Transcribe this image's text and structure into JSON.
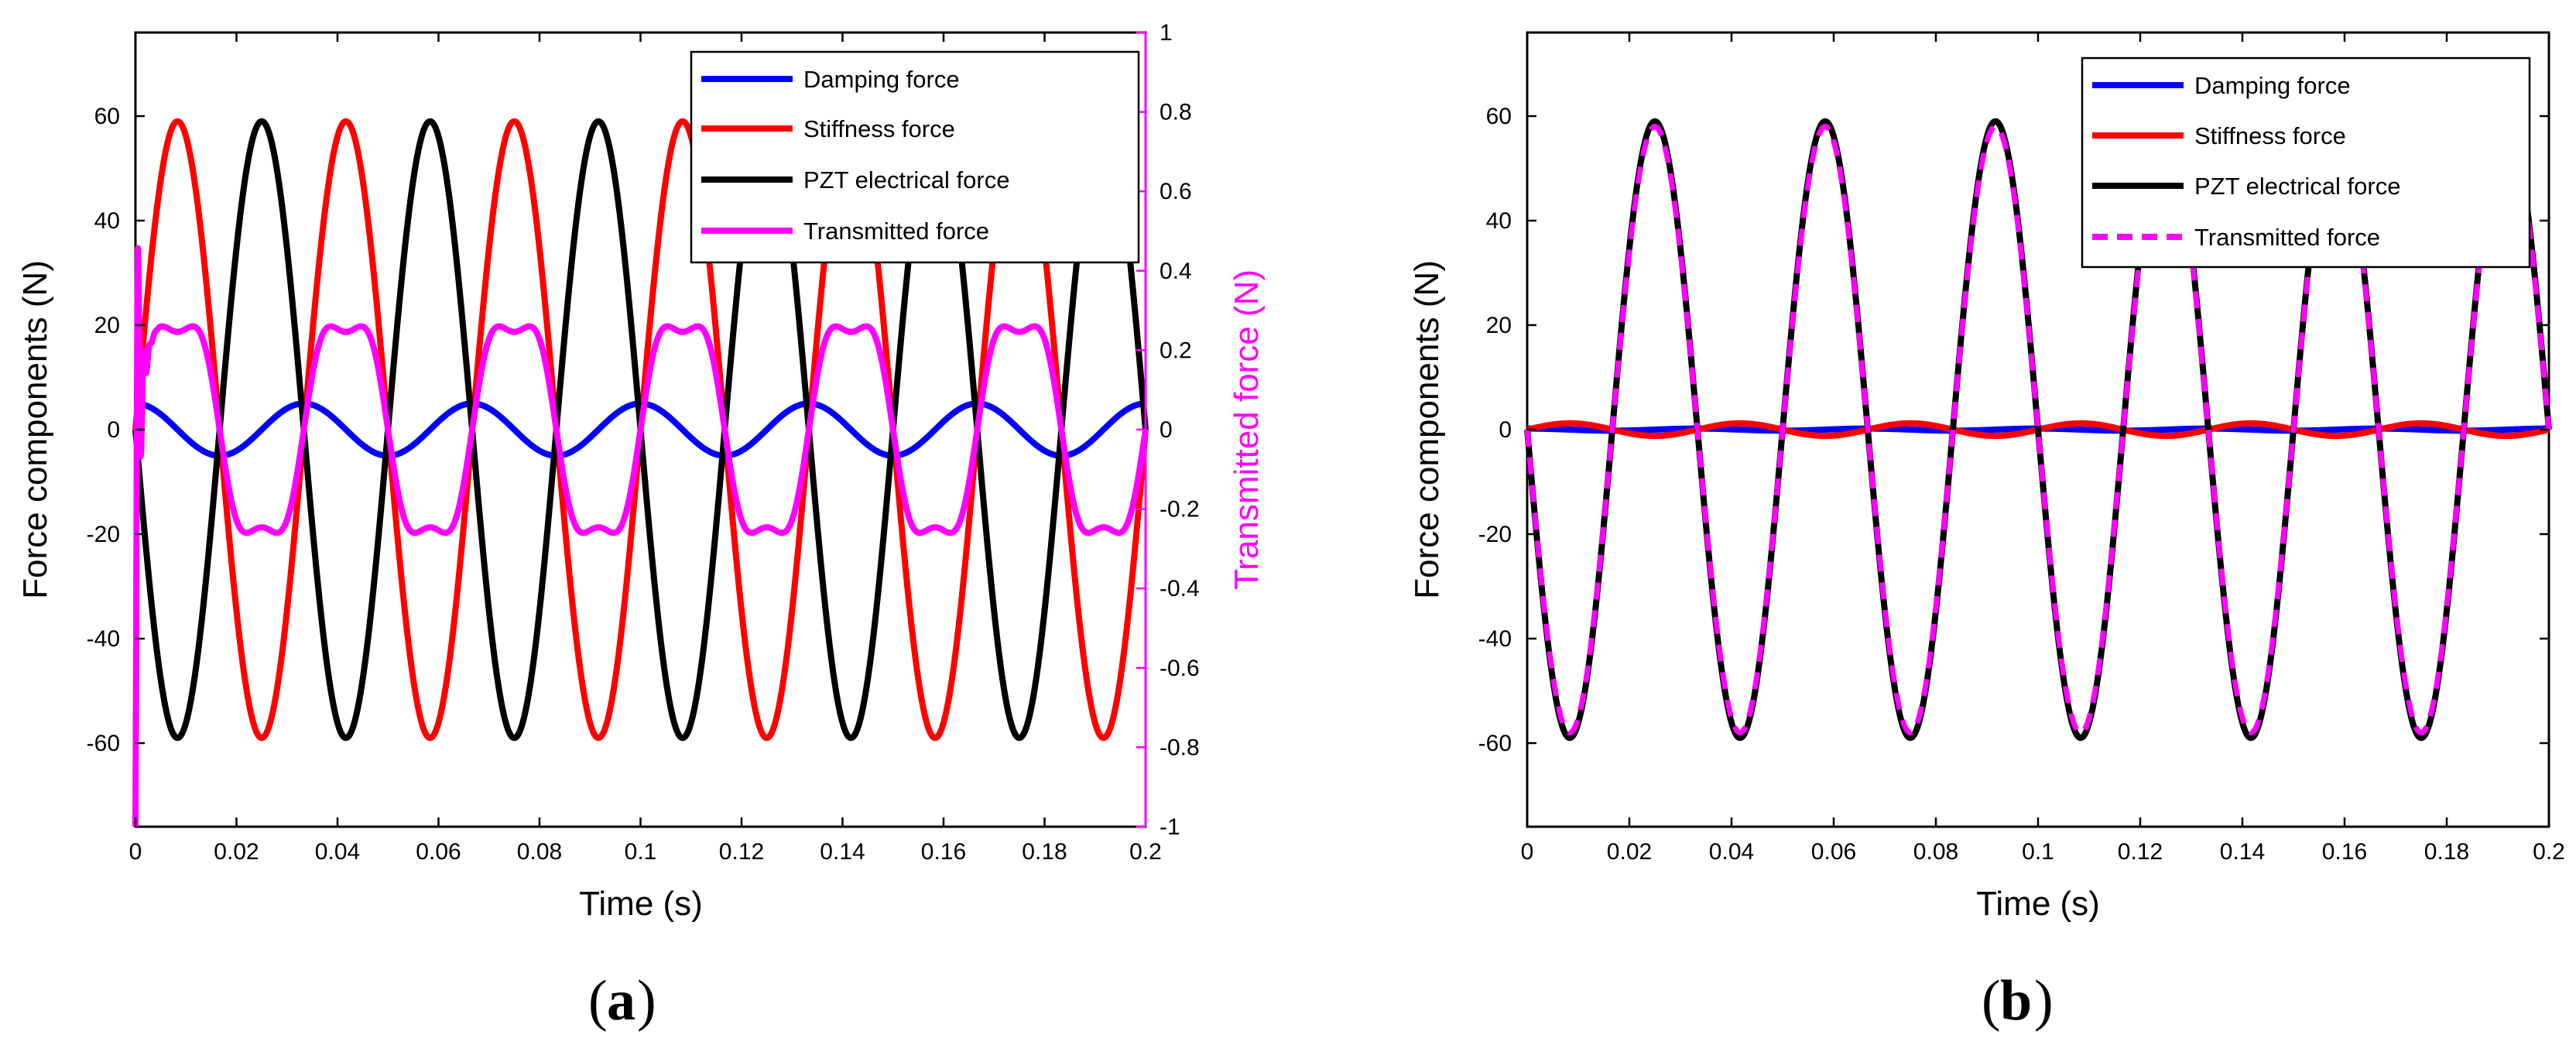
{
  "colors": {
    "damping": "#0000ff",
    "stiffness": "#ff0000",
    "pzt": "#000000",
    "transmitted": "#ff00ff"
  },
  "chart_data": [
    {
      "panel": "a",
      "caption_open": "(",
      "caption_letter": "a",
      "caption_close": ")",
      "type": "line",
      "xlabel": "Time (s)",
      "ylabel": "Force components (N)",
      "y2label": "Transmitted force (N)",
      "xlim": [
        0,
        0.2
      ],
      "ylim": [
        -76,
        76
      ],
      "y2lim": [
        -1,
        1
      ],
      "xticks": [
        0,
        0.02,
        0.04,
        0.06,
        0.08,
        0.1,
        0.12,
        0.14,
        0.16,
        0.18,
        0.2
      ],
      "xtick_labels": [
        "0",
        "0.02",
        "0.04",
        "0.06",
        "0.08",
        "0.1",
        "0.12",
        "0.14",
        "0.16",
        "0.18",
        "0.2"
      ],
      "yticks": [
        -60,
        -40,
        -20,
        0,
        20,
        40,
        60
      ],
      "ytick_labels": [
        "-60",
        "-40",
        "-20",
        "0",
        "20",
        "40",
        "60"
      ],
      "y2ticks": [
        -1,
        -0.8,
        -0.6,
        -0.4,
        -0.2,
        0,
        0.2,
        0.4,
        0.6,
        0.8,
        1
      ],
      "y2tick_labels": [
        "-1",
        "-0.8",
        "-0.6",
        "-0.4",
        "-0.2",
        "0",
        "0.2",
        "0.4",
        "0.6",
        "0.8",
        "1"
      ],
      "legend_position": "top-right",
      "series": [
        {
          "name": "Damping force",
          "key": "damping",
          "axis": "left",
          "style": "solid",
          "amplitude": 5,
          "frequency_hz": 30,
          "phase_deg": 90,
          "peak_time": 0.0
        },
        {
          "name": "Stiffness force",
          "key": "stiffness",
          "axis": "left",
          "style": "solid",
          "amplitude": 59,
          "frequency_hz": 30,
          "phase_deg": 0,
          "peak_time": 0.0083
        },
        {
          "name": "PZT electrical force",
          "key": "pzt",
          "axis": "left",
          "style": "solid",
          "amplitude": -59,
          "frequency_hz": 30,
          "phase_deg": 0,
          "peak_time": 0.025
        },
        {
          "name": "Transmitted force",
          "key": "transmitted",
          "axis": "right",
          "style": "solid",
          "amplitude": 0.3,
          "frequency_hz": 30,
          "phase_deg": 0,
          "peak_time": 0.008,
          "initial_transient_min": -1
        }
      ]
    },
    {
      "panel": "b",
      "caption_open": "(",
      "caption_letter": "b",
      "caption_close": ")",
      "type": "line",
      "xlabel": "Time (s)",
      "ylabel": "Force components (N)",
      "xlim": [
        0,
        0.2
      ],
      "ylim": [
        -76,
        76
      ],
      "xticks": [
        0,
        0.02,
        0.04,
        0.06,
        0.08,
        0.1,
        0.12,
        0.14,
        0.16,
        0.18,
        0.2
      ],
      "xtick_labels": [
        "0",
        "0.02",
        "0.04",
        "0.06",
        "0.08",
        "0.1",
        "0.12",
        "0.14",
        "0.16",
        "0.18",
        "0.2"
      ],
      "yticks": [
        -60,
        -40,
        -20,
        0,
        20,
        40,
        60
      ],
      "ytick_labels": [
        "-60",
        "-40",
        "-20",
        "0",
        "20",
        "40",
        "60"
      ],
      "legend_position": "top-right",
      "series": [
        {
          "name": "Damping force",
          "key": "damping",
          "axis": "left",
          "style": "solid",
          "amplitude": 0.2,
          "frequency_hz": 30,
          "phase_deg": 90
        },
        {
          "name": "Stiffness force",
          "key": "stiffness",
          "axis": "left",
          "style": "solid",
          "amplitude": 1.2,
          "frequency_hz": 30,
          "phase_deg": 0
        },
        {
          "name": "PZT electrical force",
          "key": "pzt",
          "axis": "left",
          "style": "solid",
          "amplitude": -59,
          "frequency_hz": 30,
          "phase_deg": 0
        },
        {
          "name": "Transmitted force",
          "key": "transmitted",
          "axis": "left",
          "style": "dashed",
          "amplitude": -58,
          "frequency_hz": 30,
          "phase_deg": 0
        }
      ]
    }
  ]
}
